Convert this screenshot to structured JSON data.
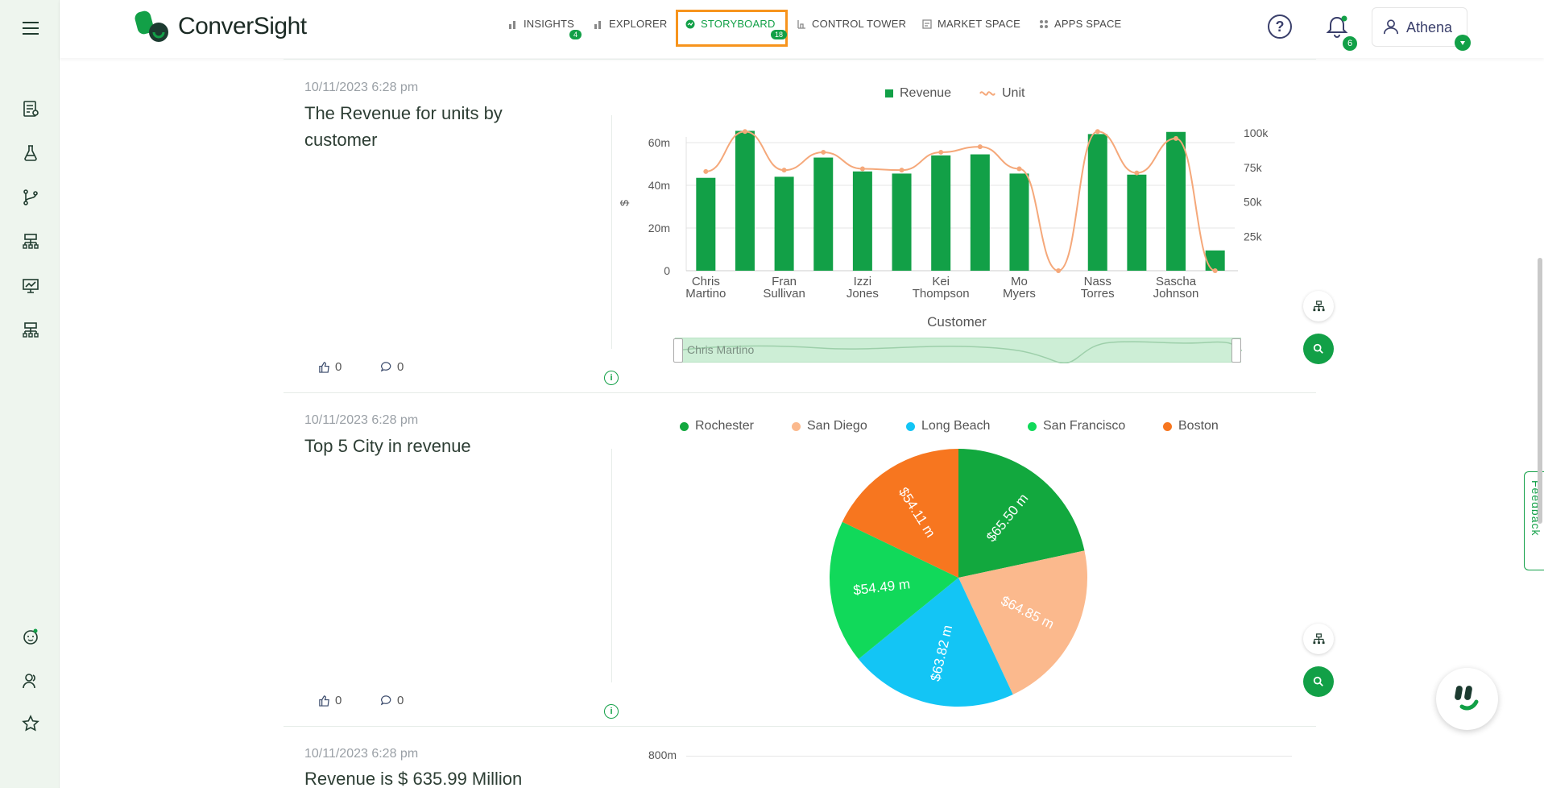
{
  "app": {
    "brand": "ConverSight",
    "user": "Athena",
    "notifications": "6",
    "help": "?"
  },
  "nav": [
    {
      "label": "INSIGHTS",
      "badge": "4"
    },
    {
      "label": "EXPLORER",
      "badge": ""
    },
    {
      "label": "STORYBOARD",
      "badge": "18"
    },
    {
      "label": "CONTROL TOWER",
      "badge": ""
    },
    {
      "label": "MARKET SPACE",
      "badge": ""
    },
    {
      "label": "APPS SPACE",
      "badge": ""
    }
  ],
  "colors": {
    "accent": "#12a047",
    "highlight": "#f7941d",
    "unit_line": "#f5a87a"
  },
  "cards": [
    {
      "timestamp": "10/11/2023 6:28 pm",
      "title": "The Revenue for units by customer",
      "likes": "0",
      "comments": "0",
      "slider_label": "Chris Martino"
    },
    {
      "timestamp": "10/11/2023 6:28 pm",
      "title": "Top 5 City in revenue",
      "likes": "0",
      "comments": "0"
    },
    {
      "timestamp": "10/11/2023 6:28 pm",
      "title": "Revenue is $ 635.99 Million",
      "axis_top": "800m"
    }
  ],
  "chart_data": [
    {
      "type": "bar",
      "series": [
        {
          "name": "Revenue",
          "type": "bar",
          "color": "#12a047",
          "values": [
            43.5,
            65.5,
            44.0,
            53.0,
            46.5,
            45.5,
            54.0,
            54.5,
            45.5,
            null,
            64.0,
            45.0,
            65.0,
            9.5
          ]
        },
        {
          "name": "Unit",
          "type": "line",
          "color": "#f5a87a",
          "values": [
            72000,
            101000,
            73000,
            86000,
            74000,
            73000,
            86000,
            90000,
            74000,
            0,
            101000,
            71000,
            96000,
            0
          ]
        }
      ],
      "categories": [
        "Chris Martino",
        "",
        "Fran Sullivan",
        "",
        "Izzi Jones",
        "",
        "Kei Thompson",
        "",
        "Mo Myers",
        "",
        "Nass Torres",
        "",
        "Sascha Johnson",
        ""
      ],
      "tick_labels": [
        [
          "Chris",
          "Martino"
        ],
        [
          "Fran",
          "Sullivan"
        ],
        [
          "Izzi",
          "Jones"
        ],
        [
          "Kei",
          "Thompson"
        ],
        [
          "Mo",
          "Myers"
        ],
        [
          "Nass",
          "Torres"
        ],
        [
          "Sascha",
          "Johnson"
        ]
      ],
      "xlabel": "Customer",
      "ylabel": "$",
      "y_ticks": [
        "0",
        "20m",
        "40m",
        "60m"
      ],
      "y2_ticks": [
        "25k",
        "50k",
        "75k",
        "100k"
      ],
      "ylim": [
        0,
        64
      ],
      "y2lim": [
        0,
        100000
      ],
      "legend": "top-center"
    },
    {
      "type": "pie",
      "slices": [
        {
          "label": "Rochester",
          "value": 65.5,
          "text": "$65.50 m",
          "color": "#12a83e"
        },
        {
          "label": "San Diego",
          "value": 64.85,
          "text": "$64.85 m",
          "color": "#fbb98d"
        },
        {
          "label": "Long Beach",
          "value": 63.82,
          "text": "$63.82 m",
          "color": "#13c5f5"
        },
        {
          "label": "San Francisco",
          "value": 54.49,
          "text": "$54.49 m",
          "color": "#11d95a"
        },
        {
          "label": "Boston",
          "value": 54.11,
          "text": "$54.11 m",
          "color": "#f7761f"
        }
      ],
      "legend": "top"
    }
  ]
}
